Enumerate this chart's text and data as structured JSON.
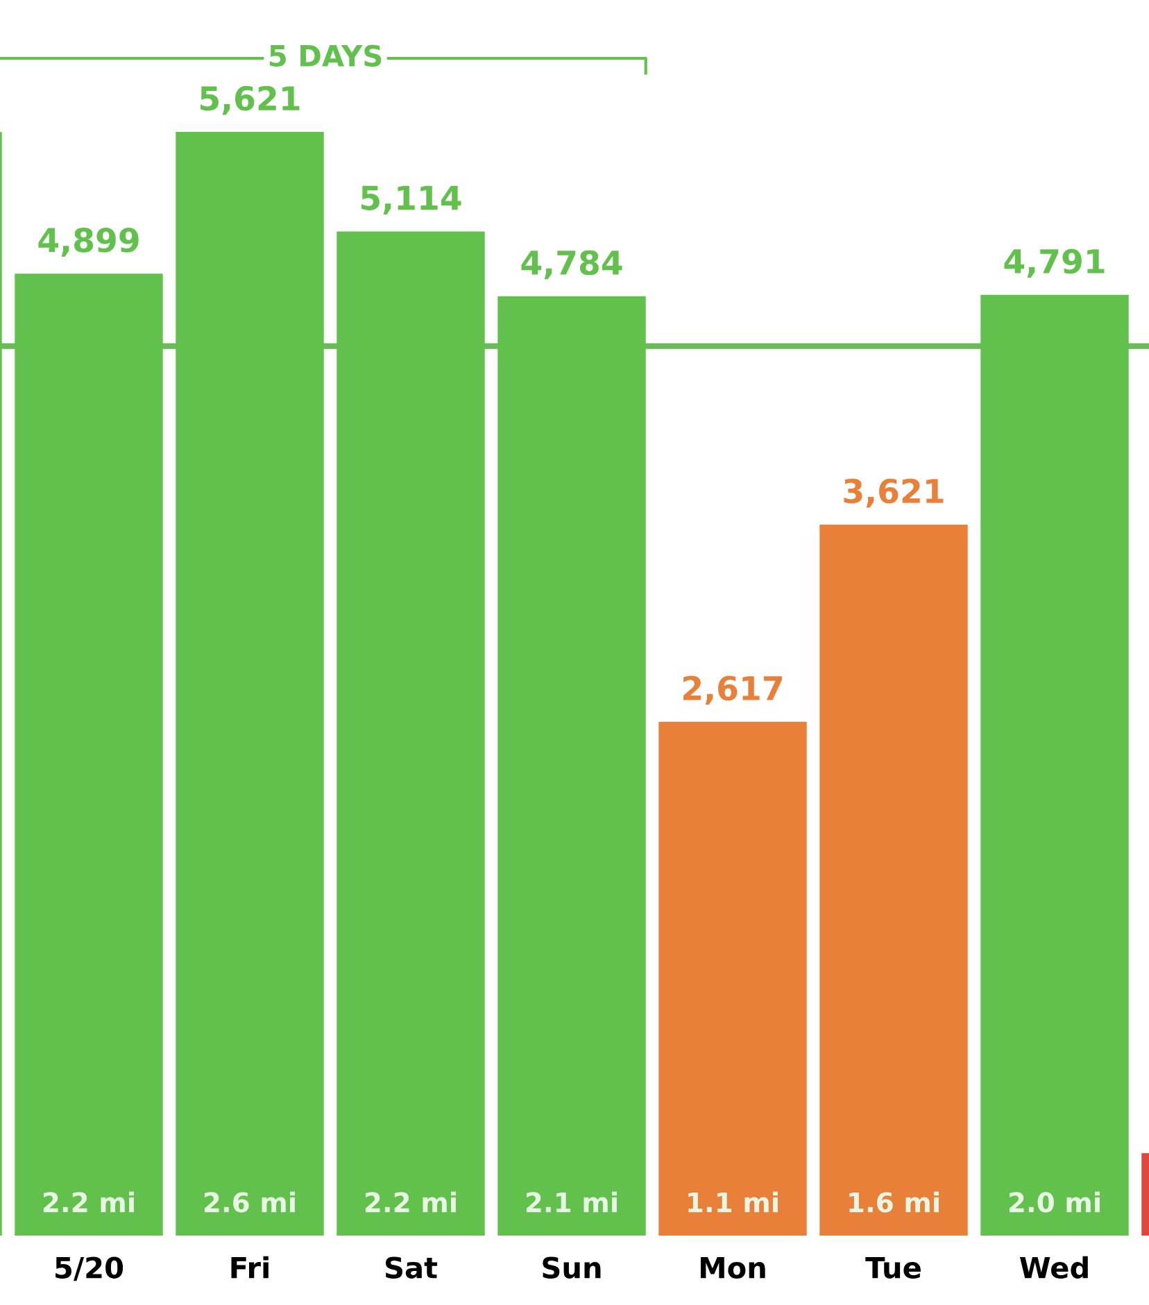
{
  "chart_data": {
    "type": "bar",
    "categories": [
      null,
      "5/20",
      "Fri",
      "Sat",
      "Sun",
      "Mon",
      "Tue",
      "Wed",
      null
    ],
    "values": [
      5620,
      4899,
      5621,
      5114,
      4784,
      2617,
      3621,
      4791,
      420
    ],
    "colors": [
      "#62c14c",
      "#62c14c",
      "#62c14c",
      "#62c14c",
      "#62c14c",
      "#e8803a",
      "#e8803a",
      "#62c14c",
      "#e0463a"
    ],
    "value_labels": [
      null,
      "4,899",
      "5,621",
      "5,114",
      "4,784",
      "2,617",
      "3,621",
      "4,791",
      null
    ],
    "ref_lines": [
      {
        "axis": "y",
        "value": 4530,
        "color": "#6cb85a"
      }
    ],
    "annotations": [
      "5 DAYS",
      {
        "text": "2.2 mi",
        "x": "5/20",
        "y": 0
      },
      {
        "text": "2.6 mi",
        "x": "Fri",
        "y": 0
      },
      {
        "text": "2.2 mi",
        "x": "Sat",
        "y": 0
      },
      {
        "text": "2.1 mi",
        "x": "Sun",
        "y": 0
      },
      {
        "text": "1.1 mi",
        "x": "Mon",
        "y": 0
      },
      {
        "text": "1.6 mi",
        "x": "Tue",
        "y": 0
      },
      {
        "text": "2.0 mi",
        "x": "Wed",
        "y": 0
      }
    ]
  }
}
